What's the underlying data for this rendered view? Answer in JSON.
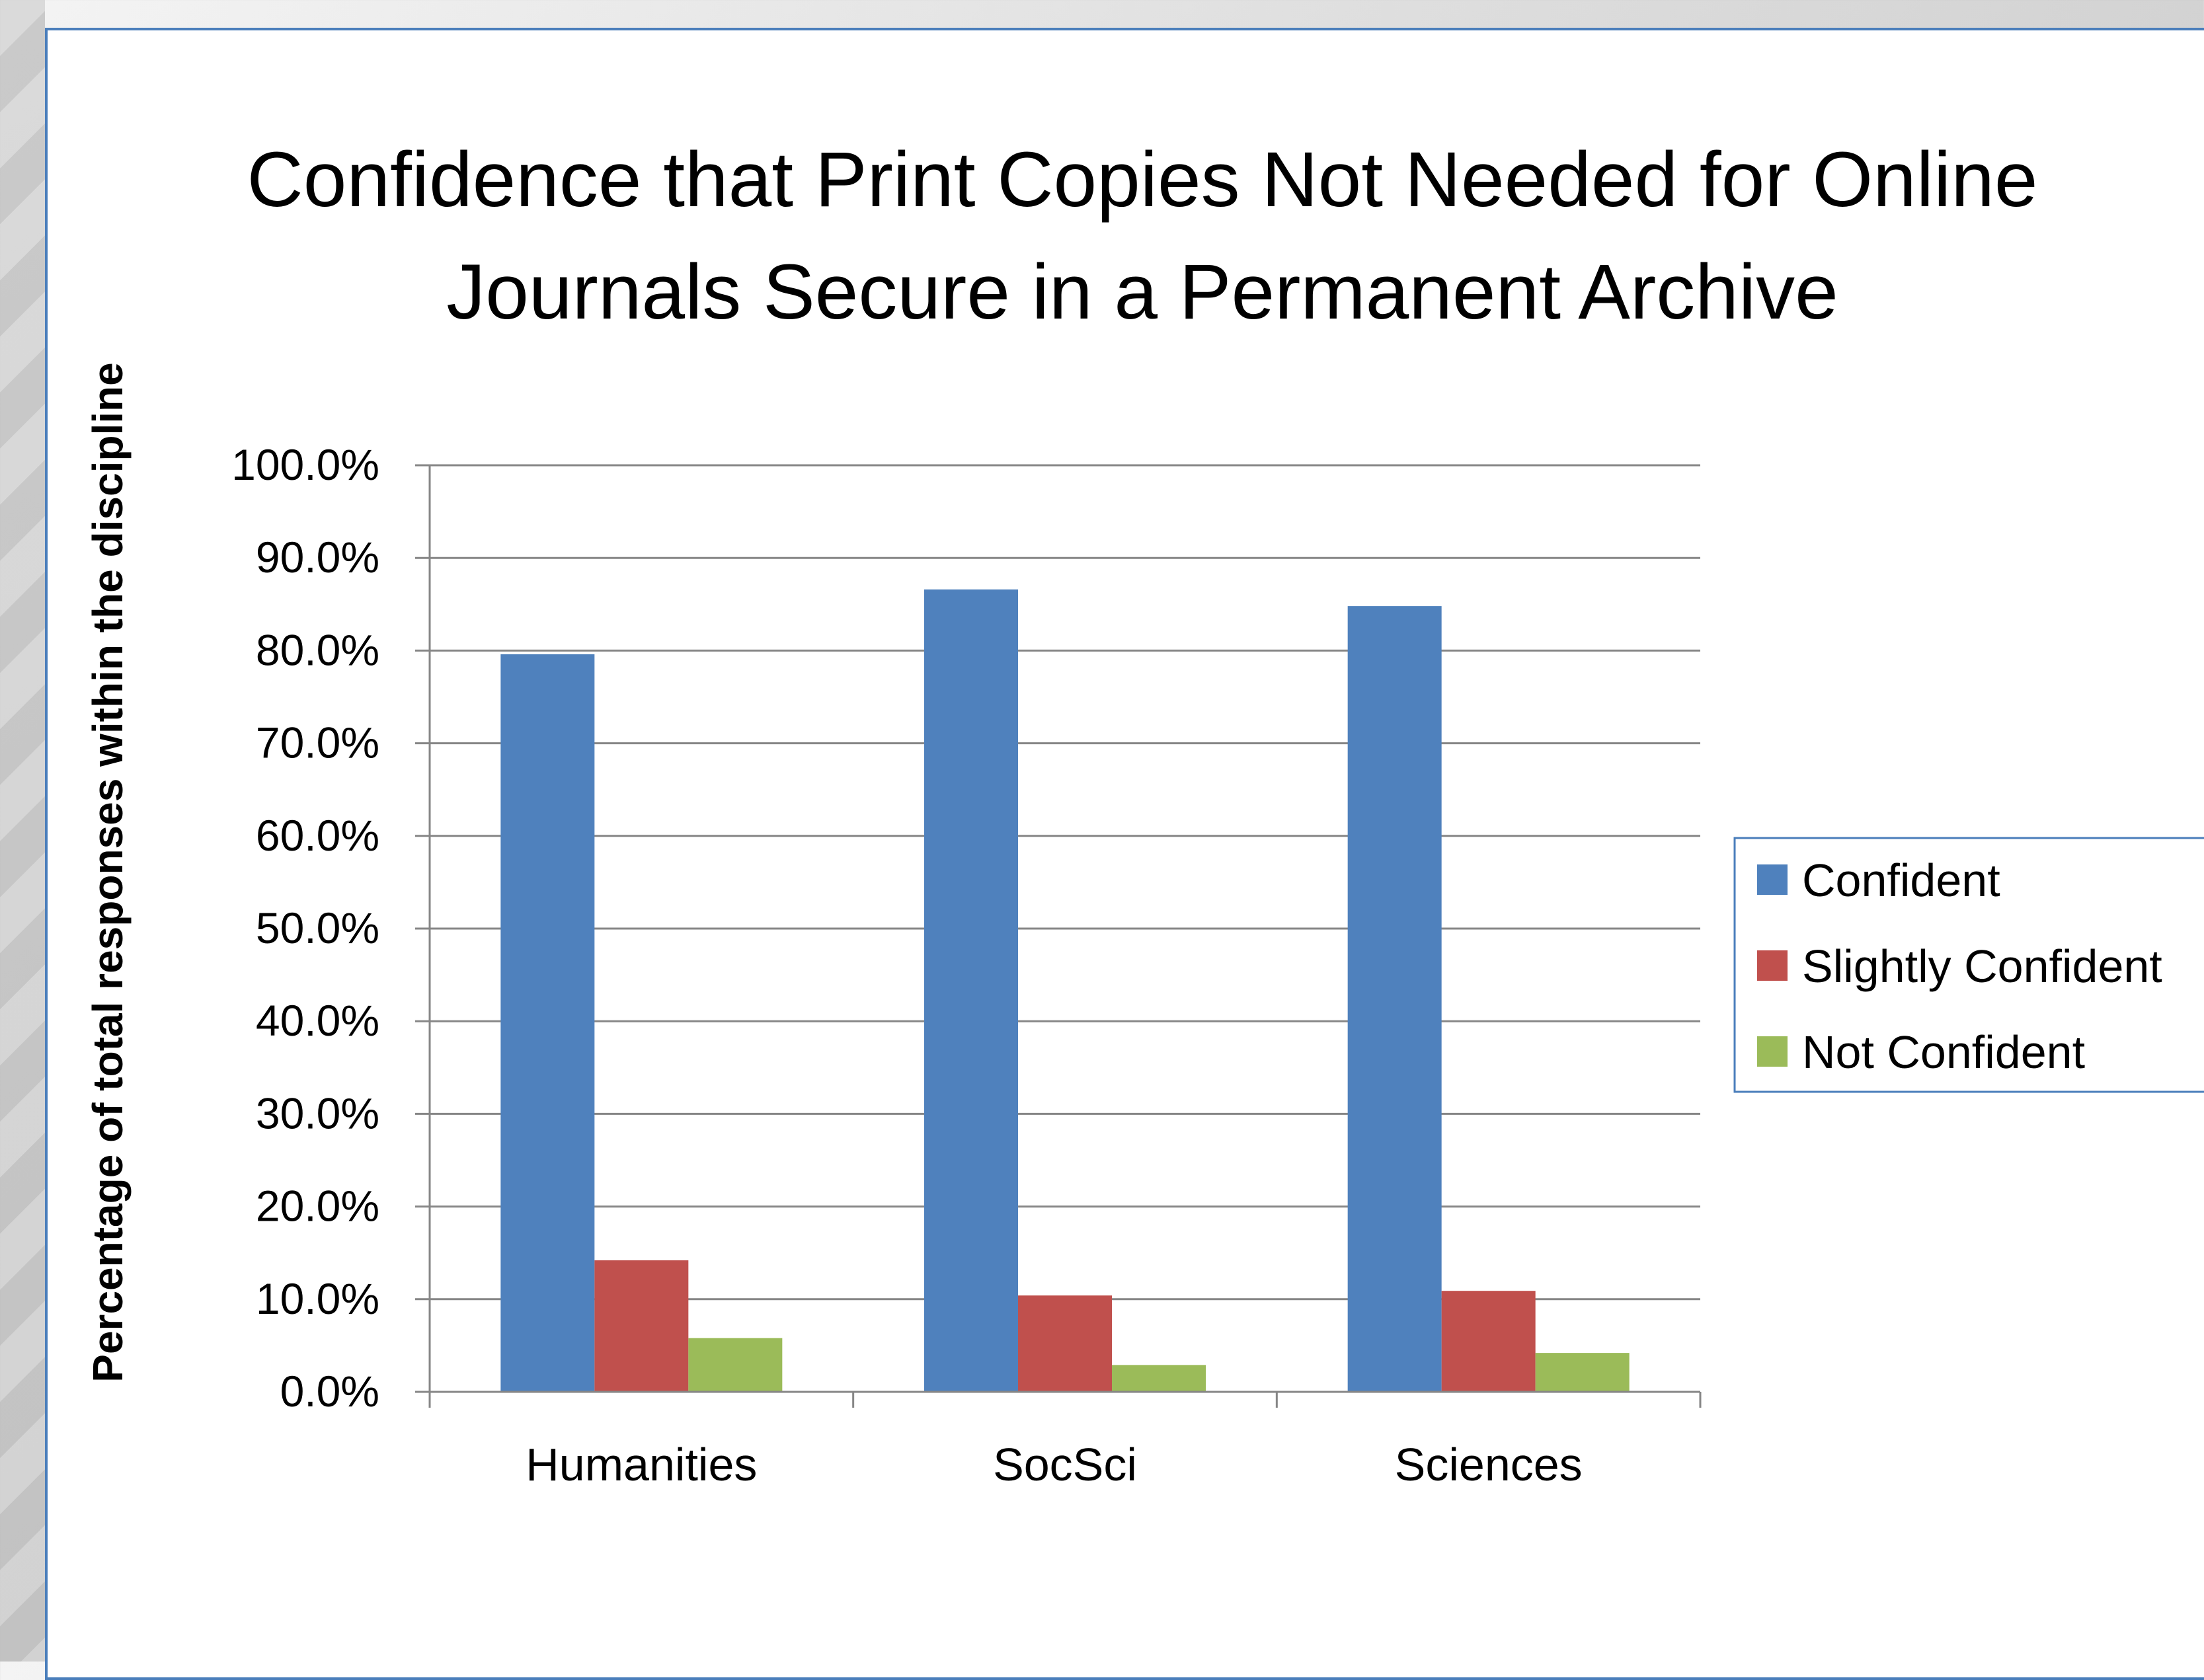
{
  "chart_data": {
    "type": "bar",
    "title_lines": [
      "Confidence that Print Copies Not Needed for Online",
      "Journals Secure in a Permanent Archive"
    ],
    "ylabel": "Percentage of total responses within the discipline",
    "xlabel": "",
    "categories": [
      "Humanities",
      "SocSci",
      "Sciences"
    ],
    "series": [
      {
        "name": "Confident",
        "color": "#4f81bd",
        "values": [
          79.6,
          86.6,
          84.8
        ]
      },
      {
        "name": "Slightly Confident",
        "color": "#c0504d",
        "values": [
          14.2,
          10.4,
          10.9
        ]
      },
      {
        "name": "Not Confident",
        "color": "#9bbb59",
        "values": [
          5.8,
          2.9,
          4.2
        ]
      }
    ],
    "yticks": [
      "0.0%",
      "10.0%",
      "20.0%",
      "30.0%",
      "40.0%",
      "50.0%",
      "60.0%",
      "70.0%",
      "80.0%",
      "90.0%",
      "100.0%"
    ],
    "ylim": [
      0,
      100
    ],
    "grid": true,
    "legend_position": "right"
  }
}
